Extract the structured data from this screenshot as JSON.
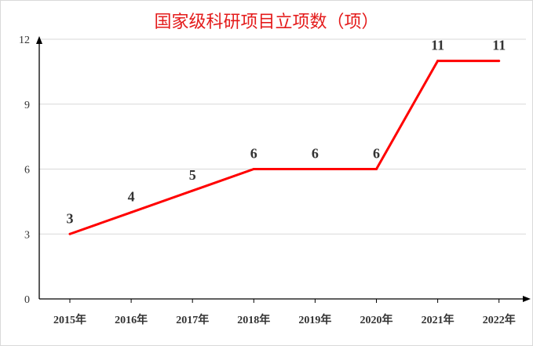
{
  "chart_data": {
    "type": "line",
    "title": "国家级科研项目立项数（项）",
    "categories": [
      "2015年",
      "2016年",
      "2017年",
      "2018年",
      "2019年",
      "2020年",
      "2021年",
      "2022年"
    ],
    "series": [
      {
        "values": [
          3,
          4,
          5,
          6,
          6,
          6,
          11,
          11
        ]
      }
    ],
    "ylim": [
      0,
      12
    ],
    "yticks": [
      0,
      3,
      6,
      9,
      12
    ],
    "grid": true,
    "legend": "none",
    "colors": {
      "line": "#ff0000",
      "title": "#e41b1b",
      "grid": "#d9d9d9",
      "axis": "#000000"
    }
  }
}
